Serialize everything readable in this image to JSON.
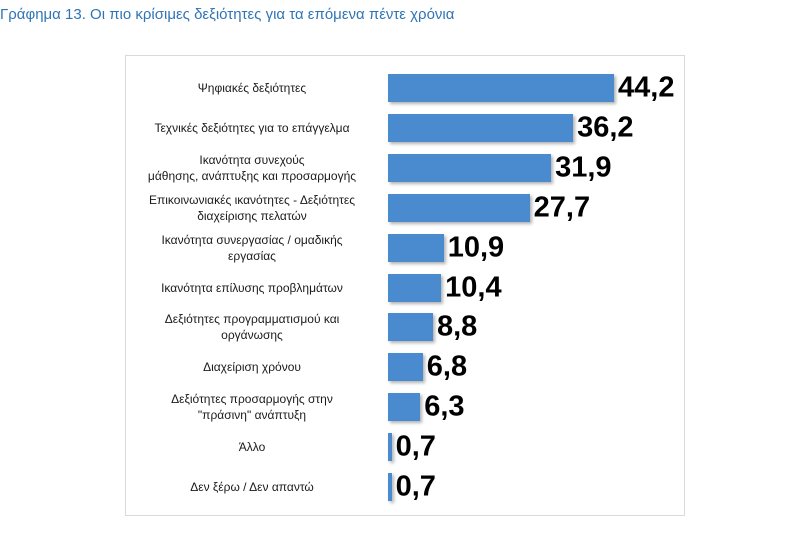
{
  "chart_data": {
    "type": "bar",
    "orientation": "horizontal",
    "title": "Γράφημα 13. Οι πιο κρίσιμες δεξιότητες για τα επόμενα πέντε χρόνια",
    "categories": [
      "Ψηφιακές δεξιότητες",
      "Τεχνικές δεξιότητες για το επάγγελμα",
      "Ικανότητα συνεχούς\nμάθησης, ανάπτυξης και προσαρμογής",
      "Επικοινωνιακές ικανότητες - Δεξιότητες\nδιαχείρισης πελατών",
      "Ικανότητα συνεργασίας / ομαδικής\nεργασίας",
      "Ικανότητα επίλυσης προβλημάτων",
      "Δεξιότητες προγραμματισμού και\nοργάνωσης",
      "Διαχείριση χρόνου",
      "Δεξιότητες προσαρμογής στην\n\"πράσινη\" ανάπτυξη",
      "Άλλο",
      "Δεν ξέρω / Δεν απαντώ"
    ],
    "values": [
      44.2,
      36.2,
      31.9,
      27.7,
      10.9,
      10.4,
      8.8,
      6.8,
      6.3,
      0.7,
      0.7
    ],
    "value_labels": [
      "44,2",
      "36,2",
      "31,9",
      "27,7",
      "10,9",
      "10,4",
      "8,8",
      "6,8",
      "6,3",
      "0,7",
      "0,7"
    ],
    "color": "#4a8bd0"
  }
}
